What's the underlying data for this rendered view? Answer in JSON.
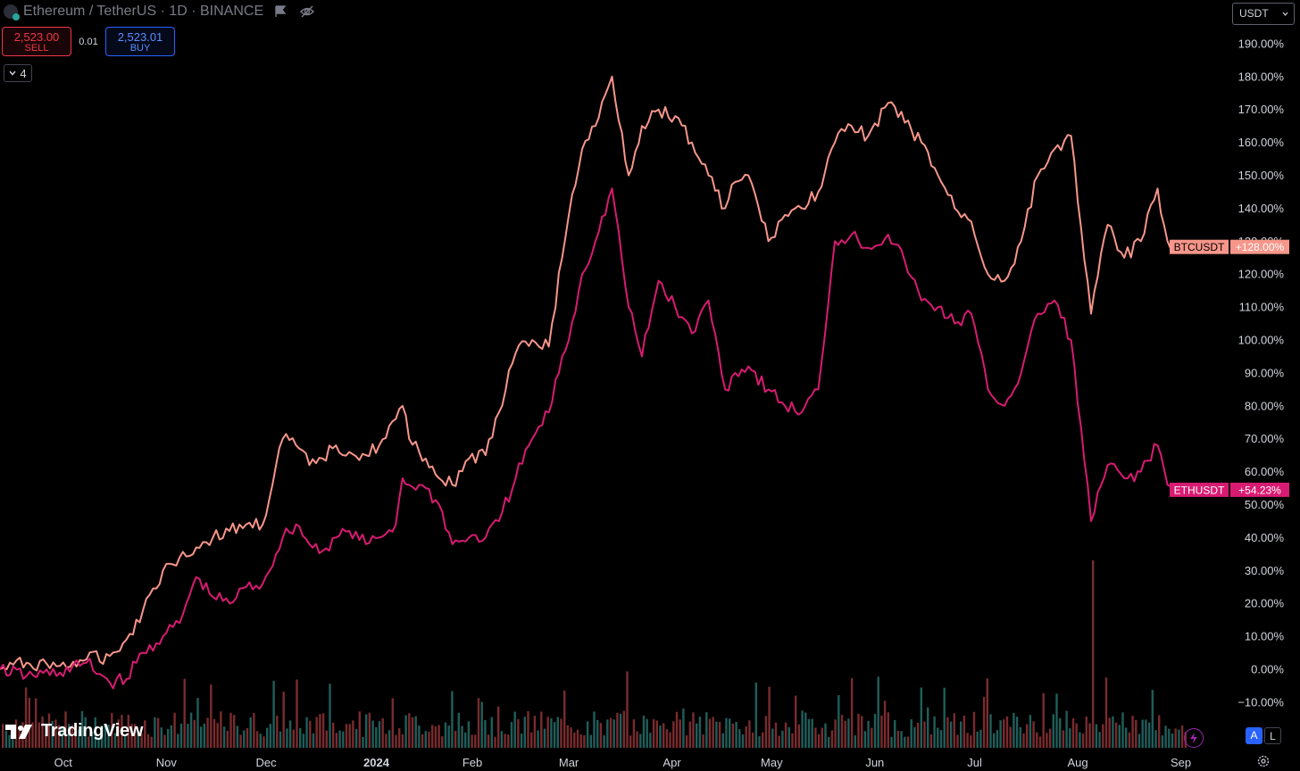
{
  "header": {
    "title": "Ethereum / TetherUS · 1D · BINANCE"
  },
  "trade": {
    "sell_price": "2,523.00",
    "sell_label": "SELL",
    "spread": "0.01",
    "buy_price": "2,523.01",
    "buy_label": "BUY"
  },
  "indicators_toggle": "4",
  "currency": "USDT",
  "branding": "TradingView",
  "scale_buttons": {
    "auto": "A",
    "log": "L"
  },
  "icons": [
    "ethereum-icon",
    "flag-icon",
    "eye-off-icon",
    "chevron-down-icon",
    "tradingview-logo",
    "lightning-icon",
    "gear-icon"
  ],
  "colors": {
    "btc_line": "#f7968a",
    "eth_line": "#d81b72",
    "vol_up": "#1f5e5a",
    "vol_down": "#7a2b2e",
    "background": "#000000"
  },
  "chart_data": {
    "type": "line",
    "title": "",
    "xlabel": "",
    "ylabel": "",
    "x_ticks": [
      "Oct",
      "Nov",
      "Dec",
      "2024",
      "Feb",
      "Mar",
      "Apr",
      "May",
      "Jun",
      "Jul",
      "Aug",
      "Sep"
    ],
    "y_ticks": [
      "190.00%",
      "180.00%",
      "170.00%",
      "160.00%",
      "150.00%",
      "140.00%",
      "130.00%",
      "120.00%",
      "110.00%",
      "100.00%",
      "90.00%",
      "80.00%",
      "70.00%",
      "60.00%",
      "50.00%",
      "40.00%",
      "30.00%",
      "20.00%",
      "10.00%",
      "0.00%",
      "−10.00%"
    ],
    "ylim": [
      -10,
      190
    ],
    "x_range": [
      "2023-09-12",
      "2024-09-03"
    ],
    "grid": false,
    "legend": "right-axis labels",
    "series": [
      {
        "name": "BTCUSDT",
        "last_label": "+128.00%",
        "points": [
          [
            "2023-09-12",
            0
          ],
          [
            "2023-09-20",
            2
          ],
          [
            "2023-09-30",
            1
          ],
          [
            "2023-10-08",
            3
          ],
          [
            "2023-10-15",
            4
          ],
          [
            "2023-10-20",
            9
          ],
          [
            "2023-10-25",
            18
          ],
          [
            "2023-10-31",
            30
          ],
          [
            "2023-11-05",
            34
          ],
          [
            "2023-11-10",
            37
          ],
          [
            "2023-11-15",
            40
          ],
          [
            "2023-11-20",
            42
          ],
          [
            "2023-11-25",
            44
          ],
          [
            "2023-11-30",
            44
          ],
          [
            "2023-12-04",
            62
          ],
          [
            "2023-12-06",
            70
          ],
          [
            "2023-12-10",
            68
          ],
          [
            "2023-12-14",
            62
          ],
          [
            "2023-12-18",
            64
          ],
          [
            "2023-12-22",
            68
          ],
          [
            "2023-12-26",
            66
          ],
          [
            "2023-12-31",
            65
          ],
          [
            "2024-01-04",
            68
          ],
          [
            "2024-01-09",
            76
          ],
          [
            "2024-01-11",
            80
          ],
          [
            "2024-01-13",
            70
          ],
          [
            "2024-01-18",
            64
          ],
          [
            "2024-01-22",
            58
          ],
          [
            "2024-01-26",
            56
          ],
          [
            "2024-01-31",
            64
          ],
          [
            "2024-02-05",
            65
          ],
          [
            "2024-02-09",
            78
          ],
          [
            "2024-02-14",
            96
          ],
          [
            "2024-02-19",
            100
          ],
          [
            "2024-02-24",
            98
          ],
          [
            "2024-02-28",
            125
          ],
          [
            "2024-03-01",
            138
          ],
          [
            "2024-03-05",
            158
          ],
          [
            "2024-03-09",
            165
          ],
          [
            "2024-03-14",
            180
          ],
          [
            "2024-03-19",
            150
          ],
          [
            "2024-03-23",
            165
          ],
          [
            "2024-03-28",
            170
          ],
          [
            "2024-04-02",
            168
          ],
          [
            "2024-04-07",
            160
          ],
          [
            "2024-04-12",
            150
          ],
          [
            "2024-04-17",
            140
          ],
          [
            "2024-04-20",
            148
          ],
          [
            "2024-04-24",
            150
          ],
          [
            "2024-04-30",
            130
          ],
          [
            "2024-05-05",
            138
          ],
          [
            "2024-05-10",
            140
          ],
          [
            "2024-05-15",
            145
          ],
          [
            "2024-05-20",
            160
          ],
          [
            "2024-05-25",
            165
          ],
          [
            "2024-05-30",
            162
          ],
          [
            "2024-06-05",
            172
          ],
          [
            "2024-06-10",
            166
          ],
          [
            "2024-06-15",
            160
          ],
          [
            "2024-06-20",
            150
          ],
          [
            "2024-06-25",
            140
          ],
          [
            "2024-06-30",
            136
          ],
          [
            "2024-07-05",
            120
          ],
          [
            "2024-07-10",
            118
          ],
          [
            "2024-07-15",
            130
          ],
          [
            "2024-07-20",
            150
          ],
          [
            "2024-07-25",
            158
          ],
          [
            "2024-07-30",
            162
          ],
          [
            "2024-08-05",
            108
          ],
          [
            "2024-08-10",
            135
          ],
          [
            "2024-08-15",
            125
          ],
          [
            "2024-08-20",
            130
          ],
          [
            "2024-08-25",
            146
          ],
          [
            "2024-08-28",
            130
          ],
          [
            "2024-09-01",
            128
          ]
        ]
      },
      {
        "name": "ETHUSDT",
        "last_label": "+54.23%",
        "points": [
          [
            "2023-09-12",
            0
          ],
          [
            "2023-09-20",
            -2
          ],
          [
            "2023-09-30",
            -1
          ],
          [
            "2023-10-08",
            2
          ],
          [
            "2023-10-15",
            -4
          ],
          [
            "2023-10-20",
            -3
          ],
          [
            "2023-10-25",
            5
          ],
          [
            "2023-10-31",
            10
          ],
          [
            "2023-11-05",
            14
          ],
          [
            "2023-11-10",
            28
          ],
          [
            "2023-11-15",
            22
          ],
          [
            "2023-11-20",
            20
          ],
          [
            "2023-11-25",
            25
          ],
          [
            "2023-11-30",
            26
          ],
          [
            "2023-12-04",
            35
          ],
          [
            "2023-12-06",
            40
          ],
          [
            "2023-12-10",
            44
          ],
          [
            "2023-12-14",
            38
          ],
          [
            "2023-12-18",
            36
          ],
          [
            "2023-12-22",
            40
          ],
          [
            "2023-12-26",
            42
          ],
          [
            "2023-12-31",
            38
          ],
          [
            "2024-01-04",
            40
          ],
          [
            "2024-01-09",
            44
          ],
          [
            "2024-01-11",
            58
          ],
          [
            "2024-01-13",
            56
          ],
          [
            "2024-01-18",
            55
          ],
          [
            "2024-01-22",
            50
          ],
          [
            "2024-01-26",
            38
          ],
          [
            "2024-01-31",
            40
          ],
          [
            "2024-02-05",
            40
          ],
          [
            "2024-02-09",
            45
          ],
          [
            "2024-02-14",
            58
          ],
          [
            "2024-02-19",
            70
          ],
          [
            "2024-02-24",
            78
          ],
          [
            "2024-02-28",
            95
          ],
          [
            "2024-03-01",
            100
          ],
          [
            "2024-03-05",
            120
          ],
          [
            "2024-03-09",
            130
          ],
          [
            "2024-03-14",
            146
          ],
          [
            "2024-03-19",
            110
          ],
          [
            "2024-03-23",
            95
          ],
          [
            "2024-03-28",
            118
          ],
          [
            "2024-04-02",
            110
          ],
          [
            "2024-04-07",
            102
          ],
          [
            "2024-04-12",
            112
          ],
          [
            "2024-04-17",
            85
          ],
          [
            "2024-04-20",
            90
          ],
          [
            "2024-04-24",
            92
          ],
          [
            "2024-04-30",
            85
          ],
          [
            "2024-05-05",
            80
          ],
          [
            "2024-05-10",
            78
          ],
          [
            "2024-05-15",
            85
          ],
          [
            "2024-05-20",
            130
          ],
          [
            "2024-05-25",
            132
          ],
          [
            "2024-05-30",
            128
          ],
          [
            "2024-06-05",
            132
          ],
          [
            "2024-06-10",
            124
          ],
          [
            "2024-06-15",
            112
          ],
          [
            "2024-06-20",
            110
          ],
          [
            "2024-06-25",
            105
          ],
          [
            "2024-06-30",
            108
          ],
          [
            "2024-07-05",
            85
          ],
          [
            "2024-07-10",
            80
          ],
          [
            "2024-07-15",
            90
          ],
          [
            "2024-07-20",
            108
          ],
          [
            "2024-07-25",
            112
          ],
          [
            "2024-07-30",
            100
          ],
          [
            "2024-08-05",
            45
          ],
          [
            "2024-08-10",
            62
          ],
          [
            "2024-08-15",
            58
          ],
          [
            "2024-08-20",
            60
          ],
          [
            "2024-08-25",
            68
          ],
          [
            "2024-08-28",
            56
          ],
          [
            "2024-09-01",
            54.23
          ]
        ]
      }
    ],
    "volume": {
      "description_free_note": "",
      "spike": [
        "2024-08-05",
        30
      ]
    }
  }
}
